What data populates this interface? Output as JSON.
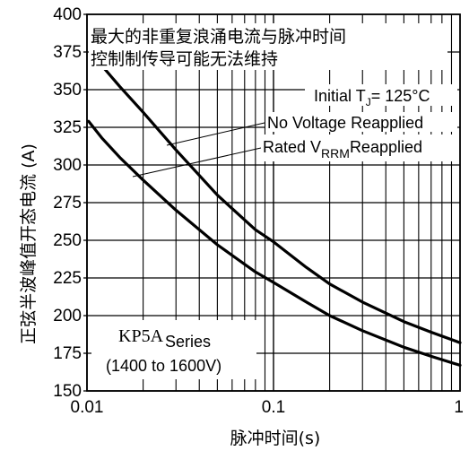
{
  "chart_data": {
    "type": "line",
    "title": "",
    "annotation_cn_line1": "最大的非重复浪涌电流与脉冲时间",
    "annotation_cn_line2": "控制制传导可能无法维持",
    "xlabel": "脉冲时间(s)",
    "ylabel": "正弦半波峰值开态电流 (A)",
    "x_scale": "log",
    "xlim": [
      0.01,
      1
    ],
    "ylim": [
      150,
      400
    ],
    "x_ticks": [
      {
        "value": 0.01,
        "label": "0.01"
      },
      {
        "value": 0.1,
        "label": "0.1"
      },
      {
        "value": 1,
        "label": "1"
      }
    ],
    "y_ticks": [
      {
        "value": 150,
        "label": "150"
      },
      {
        "value": 175,
        "label": "175"
      },
      {
        "value": 200,
        "label": "200"
      },
      {
        "value": 225,
        "label": "225"
      },
      {
        "value": 250,
        "label": "250"
      },
      {
        "value": 275,
        "label": "275"
      },
      {
        "value": 300,
        "label": "300"
      },
      {
        "value": 325,
        "label": "325"
      },
      {
        "value": 350,
        "label": "350"
      },
      {
        "value": 375,
        "label": "375"
      },
      {
        "value": 400,
        "label": "400"
      }
    ],
    "condition": {
      "prefix": "Initial T",
      "sub": "J",
      "suffix": "= 125°C"
    },
    "series": [
      {
        "name": "No Voltage Reapplied",
        "x": [
          0.012,
          0.015,
          0.02,
          0.03,
          0.05,
          0.08,
          0.1,
          0.15,
          0.2,
          0.3,
          0.5,
          0.7,
          1.0
        ],
        "y": [
          366,
          352,
          335,
          310,
          280,
          257,
          249,
          232,
          221,
          209,
          196,
          189,
          182
        ]
      },
      {
        "name_prefix": "Rated V",
        "name_sub": "RRM",
        "name_suffix": "Reapplied",
        "x": [
          0.0102,
          0.012,
          0.015,
          0.02,
          0.03,
          0.05,
          0.08,
          0.1,
          0.15,
          0.2,
          0.3,
          0.5,
          0.7,
          1.0
        ],
        "y": [
          329,
          318,
          305,
          290,
          270,
          247,
          229,
          222,
          209,
          200,
          190,
          179,
          173,
          167
        ]
      }
    ],
    "device_label": {
      "prefix": "KP5A",
      "sub": "Series",
      "range": "(1400 to 1600V)"
    },
    "grid": "partial-log"
  }
}
